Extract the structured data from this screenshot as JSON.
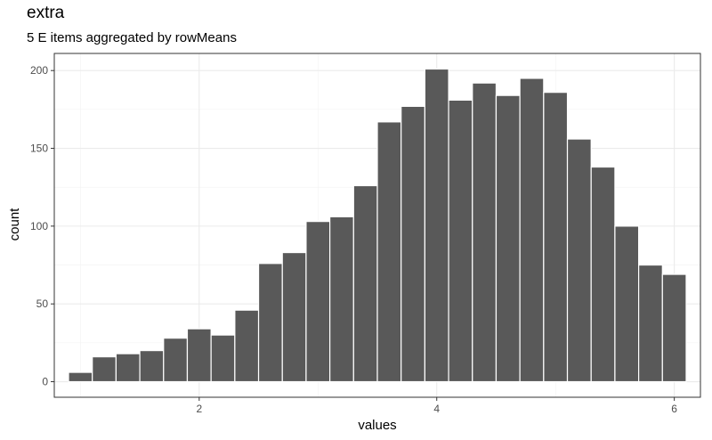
{
  "chart_data": {
    "type": "bar",
    "title": "extra",
    "subtitle": "5 E items aggregated by rowMeans",
    "xlabel": "values",
    "ylabel": "count",
    "x_ticks": [
      2,
      4,
      6
    ],
    "y_ticks": [
      0,
      50,
      100,
      150,
      200
    ],
    "xlim": [
      0.78,
      6.22
    ],
    "ylim": [
      -10,
      211
    ],
    "bin_width": 0.2,
    "bar_color": "#595959",
    "grid": true,
    "bins": [
      {
        "x": 1.0,
        "count": 6
      },
      {
        "x": 1.2,
        "count": 16
      },
      {
        "x": 1.4,
        "count": 18
      },
      {
        "x": 1.6,
        "count": 20
      },
      {
        "x": 1.8,
        "count": 28
      },
      {
        "x": 2.0,
        "count": 34
      },
      {
        "x": 2.2,
        "count": 30
      },
      {
        "x": 2.4,
        "count": 46
      },
      {
        "x": 2.6,
        "count": 76
      },
      {
        "x": 2.8,
        "count": 83
      },
      {
        "x": 3.0,
        "count": 103
      },
      {
        "x": 3.2,
        "count": 106
      },
      {
        "x": 3.4,
        "count": 126
      },
      {
        "x": 3.6,
        "count": 167
      },
      {
        "x": 3.8,
        "count": 177
      },
      {
        "x": 4.0,
        "count": 201
      },
      {
        "x": 4.2,
        "count": 181
      },
      {
        "x": 4.4,
        "count": 192
      },
      {
        "x": 4.6,
        "count": 184
      },
      {
        "x": 4.8,
        "count": 195
      },
      {
        "x": 5.0,
        "count": 186
      },
      {
        "x": 5.2,
        "count": 156
      },
      {
        "x": 5.4,
        "count": 138
      },
      {
        "x": 5.6,
        "count": 100
      },
      {
        "x": 5.8,
        "count": 75
      },
      {
        "x": 6.0,
        "count": 69
      }
    ]
  }
}
